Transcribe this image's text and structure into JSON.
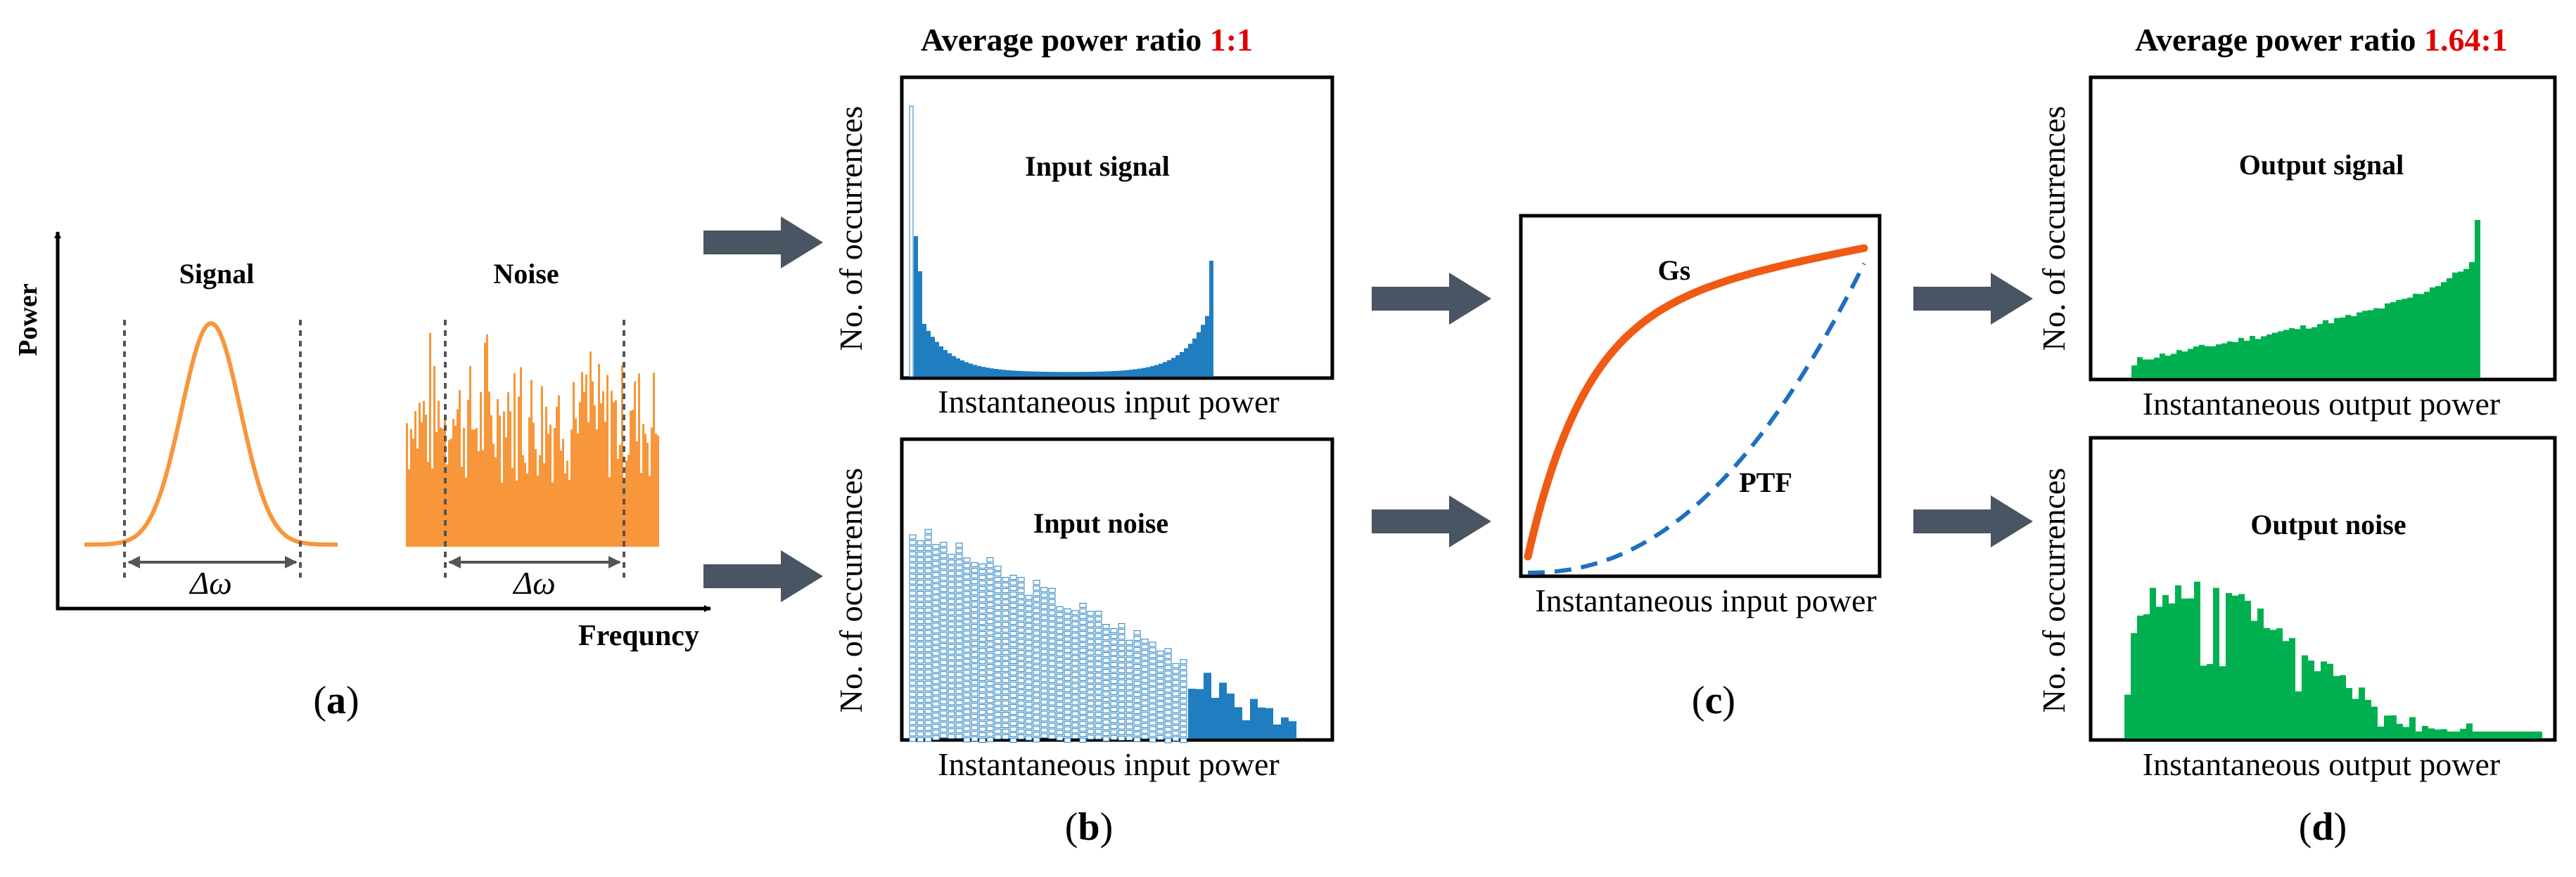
{
  "colors": {
    "signal_orange": "#F7963A",
    "blue_bars": "#1F7DC0",
    "green_bars": "#00B050",
    "gs_curve": "#F05A14",
    "ptf_curve": "#1F6FBF",
    "arrow": "#4A5563",
    "ratio_red": "#E00000",
    "dashed_line": "#555555"
  },
  "panel_a": {
    "y_axis_label": "Power",
    "x_axis_label": "Frequncy",
    "signal_label": "Signal",
    "noise_label": "Noise",
    "bandwidth_label_1": "Δω",
    "bandwidth_label_2": "Δω",
    "caption_open": "(",
    "caption_letter": "a",
    "caption_close": ")"
  },
  "panel_b": {
    "header_prefix": "Average power ratio ",
    "header_ratio": "1:1",
    "top_plot_title": "Input signal",
    "bottom_plot_title": "Input noise",
    "y_label_top": "No. of occurrences",
    "y_label_bottom": "No. of occurrences",
    "x_label_top": "Instantaneous input power",
    "x_label_bottom": "Instantaneous input power",
    "caption_open": "(",
    "caption_letter": "b",
    "caption_close": ")"
  },
  "panel_c": {
    "gs_label": "Gs",
    "ptf_label": "PTF",
    "x_label": "Instantaneous input power",
    "caption_open": "(",
    "caption_letter": "c",
    "caption_close": ")"
  },
  "panel_d": {
    "header_prefix": "Average power ratio ",
    "header_ratio": "1.64:1",
    "top_plot_title": "Output signal",
    "bottom_plot_title": "Output noise",
    "y_label_top": "No. of occurrences",
    "y_label_bottom": "No. of occurrences",
    "x_label_top": "Instantaneous output power",
    "x_label_bottom": "Instantaneous output power",
    "caption_open": "(",
    "caption_letter": "d",
    "caption_close": ")"
  }
}
